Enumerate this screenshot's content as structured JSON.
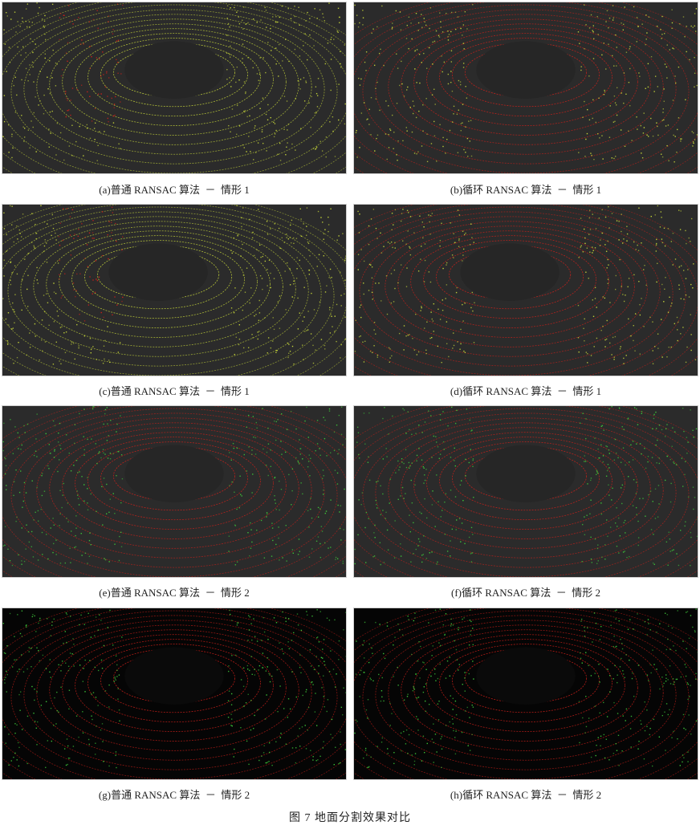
{
  "figure_caption": "图 7  地面分割效果对比",
  "panels": [
    {
      "caption": "(a)普通 RANSAC 算法  －  情形 1",
      "scheme": "gray",
      "ground": "yellow",
      "walls": "red-left"
    },
    {
      "caption": "(b)循环 RANSAC 算法  －  情形 1",
      "scheme": "gray",
      "ground": "red",
      "walls": "yellow"
    },
    {
      "caption": "(c)普通 RANSAC 算法  －  情形 1",
      "scheme": "gray",
      "ground": "yellow",
      "walls": "red-left"
    },
    {
      "caption": "(d)循环 RANSAC 算法  －  情形 1",
      "scheme": "gray",
      "ground": "red",
      "walls": "yellow"
    },
    {
      "caption": "(e)普通 RANSAC 算法  －  情形 2",
      "scheme": "gray",
      "ground": "red",
      "walls": "green"
    },
    {
      "caption": "(f)循环 RANSAC 算法  －  情形 2",
      "scheme": "gray",
      "ground": "red",
      "walls": "green"
    },
    {
      "caption": "(g)普通 RANSAC 算法  －  情形 2",
      "scheme": "black",
      "ground": "red",
      "walls": "green"
    },
    {
      "caption": "(h)循环 RANSAC 算法  －  情形 2",
      "scheme": "black",
      "ground": "red",
      "walls": "green"
    }
  ],
  "colors": {
    "ground_red": "#d0201a",
    "point_yellow": "#c8d83a",
    "point_green": "#3ec83a",
    "background_gray": "#2b2b2b",
    "background_black": "#050505"
  }
}
